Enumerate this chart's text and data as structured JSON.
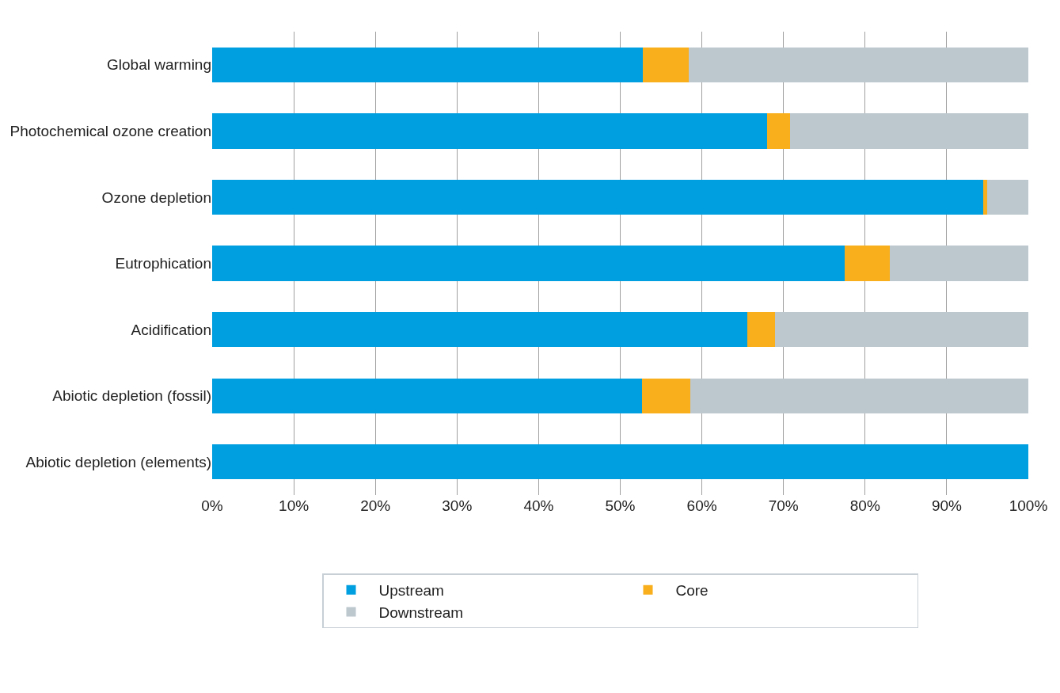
{
  "chart_data": {
    "type": "bar",
    "orientation": "horizontal",
    "stacked": true,
    "categories": [
      "Global warming",
      "Photochemical ozone creation",
      "Ozone depletion",
      "Eutrophication",
      "Acidification",
      "Abiotic depletion (fossil)",
      "Abiotic depletion (elements)"
    ],
    "series": [
      {
        "name": "Upstream",
        "color": "#009fe0",
        "values": [
          52.8,
          68.0,
          94.5,
          77.5,
          65.6,
          52.7,
          100
        ]
      },
      {
        "name": "Core",
        "color": "#f9ae1b",
        "values": [
          5.6,
          2.8,
          0.5,
          5.5,
          3.4,
          5.9,
          0
        ]
      },
      {
        "name": "Downstream",
        "color": "#bcc7ce",
        "values": [
          41.6,
          29.2,
          5.0,
          17.0,
          31.0,
          41.4,
          0
        ]
      }
    ],
    "xlim": [
      0,
      100
    ],
    "xticks": [
      {
        "value": 0,
        "label": "0%"
      },
      {
        "value": 10,
        "label": "10%"
      },
      {
        "value": 20,
        "label": "20%"
      },
      {
        "value": 30,
        "label": "30%"
      },
      {
        "value": 40,
        "label": "40%"
      },
      {
        "value": 50,
        "label": "50%"
      },
      {
        "value": 60,
        "label": "60%"
      },
      {
        "value": 70,
        "label": "70%"
      },
      {
        "value": 80,
        "label": "80%"
      },
      {
        "value": 90,
        "label": "90%"
      },
      {
        "value": 100,
        "label": "100%"
      }
    ],
    "grid": "x",
    "legend": "bottom"
  }
}
